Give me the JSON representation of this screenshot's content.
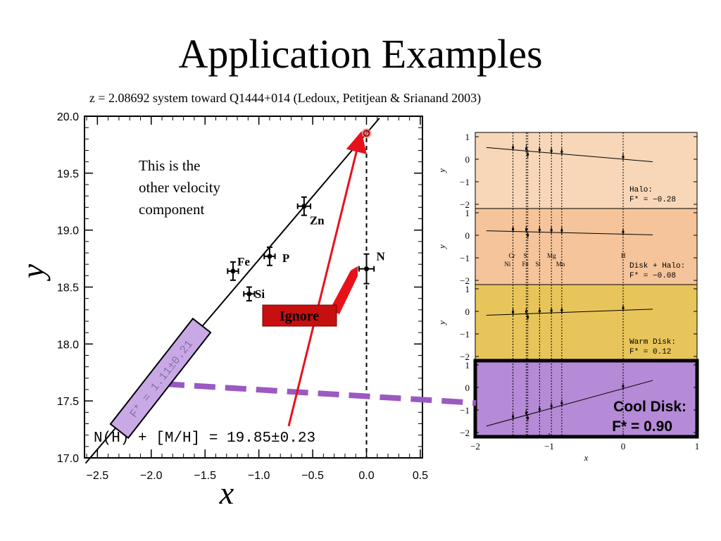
{
  "slide": {
    "title": "Application Examples",
    "subtitle": "z = 2.08692 system toward Q1444+014 (Ledoux, Petitjean & Srianand 2003)"
  },
  "callouts": {
    "note_lines": [
      "This is the",
      "other velocity",
      "component"
    ],
    "ignore_label": "Ignore"
  },
  "colors": {
    "arrow_red": "#e8111b",
    "ignore_bg": "#c70f10",
    "purple_dash": "#9b59c2",
    "purple_fill": "#c9a8e6",
    "halo_bg": "#f7d7b8",
    "disk_halo_bg": "#f5c49a",
    "warm_disk_bg": "#e8c55a",
    "cool_disk_bg": "#b58ad6"
  },
  "chart_data": [
    {
      "type": "scatter",
      "xlabel": "x",
      "ylabel": "y",
      "xlim": [
        -2.6,
        0.55
      ],
      "ylim": [
        17.0,
        20.0
      ],
      "xticks": [
        "−2.5",
        "−2.0",
        "−1.5",
        "−1.0",
        "−0.5",
        "0.0",
        "0.5"
      ],
      "yticks": [
        "17.0",
        "17.5",
        "18.0",
        "18.5",
        "19.0",
        "19.5",
        "20.0"
      ],
      "points": [
        {
          "label": "Fe",
          "x": -1.24,
          "y": 18.64,
          "xerr": 0.05,
          "yerr": 0.08
        },
        {
          "label": "Si",
          "x": -1.09,
          "y": 18.44,
          "xerr": 0.05,
          "yerr": 0.06
        },
        {
          "label": "P",
          "x": -0.9,
          "y": 18.77,
          "xerr": 0.05,
          "yerr": 0.08
        },
        {
          "label": "Zn",
          "x": -0.58,
          "y": 19.21,
          "xerr": 0.06,
          "yerr": 0.08
        },
        {
          "label": "N",
          "x": 0.0,
          "y": 18.66,
          "xerr": 0.07,
          "yerr": 0.13
        }
      ],
      "fit_line": {
        "slope": 1.11,
        "intercept": 19.85
      },
      "slope_label": "F* = 1.11±0.21",
      "intercept_label": "N(H) + [M/H] = 19.85±0.23",
      "zero_line_x": 0.0
    },
    {
      "type": "scatter",
      "panels": [
        {
          "name": "Halo",
          "label_lines": [
            "Halo:",
            "F* = −0.28"
          ],
          "slope": -0.28
        },
        {
          "name": "Disk + Halo",
          "label_lines": [
            "Disk + Halo:",
            "F* = −0.08"
          ],
          "slope": -0.08,
          "elements_top": [
            "Cr",
            "S",
            "Mg"
          ],
          "elements_bottom": [
            "Ni",
            "Fe",
            "Si",
            "Mn"
          ],
          "element_h": "H"
        },
        {
          "name": "Warm Disk",
          "label_lines": [
            "Warm Disk:",
            "F* = 0.12"
          ],
          "slope": 0.12
        },
        {
          "name": "Cool Disk",
          "label_lines": [
            "Cool Disk:",
            "F* = 0.90"
          ],
          "slope": 0.9
        }
      ],
      "xlabel": "x",
      "ylabel": "y",
      "xlim": [
        -2,
        1
      ],
      "ylim": [
        -2,
        1
      ],
      "xticks": [
        "−2",
        "−1",
        "0",
        "1"
      ],
      "yticks": [
        "1",
        "0",
        "−1",
        "−2"
      ]
    }
  ]
}
